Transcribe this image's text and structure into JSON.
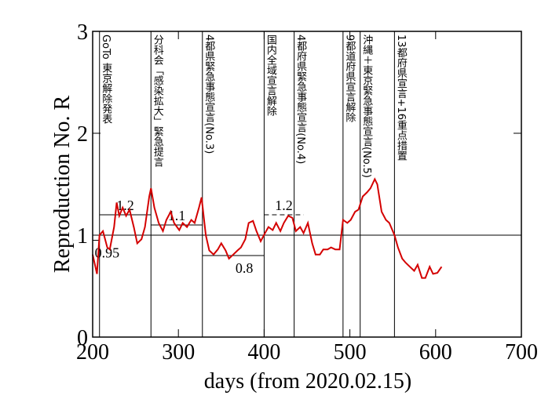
{
  "chart_data": {
    "type": "line",
    "xlabel": "days   (from 2020.02.15)",
    "ylabel": "Reproduction No.  R",
    "xlim": [
      200,
      700
    ],
    "xticks": [
      200,
      300,
      400,
      500,
      600,
      700
    ],
    "ylim": [
      0,
      3
    ],
    "yticks": [
      0,
      1,
      2,
      3
    ],
    "series": [
      {
        "color": "#d40000",
        "x": [
          200,
          205,
          208,
          212,
          217,
          220,
          225,
          228,
          231,
          235,
          239,
          243,
          248,
          252,
          257,
          261,
          266,
          268,
          272,
          277,
          282,
          286,
          291,
          295,
          301,
          305,
          310,
          315,
          319,
          324,
          327,
          332,
          336,
          341,
          346,
          350,
          355,
          359,
          364,
          369,
          373,
          378,
          382,
          387,
          391,
          396,
          401,
          405,
          410,
          414,
          419,
          423,
          428,
          433,
          437,
          442,
          446,
          451,
          456,
          460,
          465,
          469,
          474,
          478,
          483,
          488,
          492,
          497,
          501,
          506,
          510,
          515,
          520,
          524,
          529,
          532,
          537,
          542,
          546,
          552,
          556,
          561,
          565,
          570,
          575,
          579,
          584,
          588,
          593,
          597,
          602,
          607
        ],
        "values": [
          0.81,
          0.62,
          1.0,
          1.04,
          0.88,
          0.86,
          1.08,
          1.32,
          1.19,
          1.27,
          1.19,
          1.25,
          1.08,
          0.92,
          0.96,
          1.08,
          1.38,
          1.46,
          1.27,
          1.12,
          1.04,
          1.15,
          1.23,
          1.12,
          1.05,
          1.12,
          1.08,
          1.15,
          1.12,
          1.27,
          1.37,
          1.0,
          0.85,
          0.81,
          0.86,
          0.92,
          0.85,
          0.77,
          0.81,
          0.85,
          0.88,
          0.96,
          1.12,
          1.14,
          1.04,
          0.94,
          1.02,
          1.08,
          1.05,
          1.12,
          1.04,
          1.12,
          1.19,
          1.17,
          1.04,
          1.08,
          1.02,
          1.12,
          0.92,
          0.81,
          0.81,
          0.86,
          0.86,
          0.88,
          0.86,
          0.86,
          1.15,
          1.12,
          1.15,
          1.23,
          1.25,
          1.38,
          1.42,
          1.46,
          1.55,
          1.5,
          1.23,
          1.15,
          1.12,
          1.0,
          0.88,
          0.77,
          0.73,
          0.69,
          0.65,
          0.71,
          0.58,
          0.58,
          0.69,
          0.62,
          0.63,
          0.69
        ]
      }
    ],
    "reference_lines": [
      {
        "value": 1
      }
    ],
    "segments": [
      {
        "value": 0.95,
        "x": [
          200,
          208
        ]
      },
      {
        "value": 1.2,
        "x": [
          208,
          268
        ]
      },
      {
        "value": 1.1,
        "x": [
          268,
          328
        ]
      },
      {
        "value": 0.8,
        "x": [
          328,
          400
        ]
      },
      {
        "value": 1.2,
        "x": [
          400,
          446
        ],
        "style": "dashed"
      }
    ],
    "events": [
      {
        "day": 208,
        "label": "GoTo 東京解除発表"
      },
      {
        "day": 268,
        "label": "分科会「感染拡大」緊急提言"
      },
      {
        "day": 328,
        "label": "4都県緊急事態宣言(No.3)"
      },
      {
        "day": 400,
        "label": "国内全域宣言解除"
      },
      {
        "day": 435,
        "label": "4都府県緊急事態宣言(No.4)"
      },
      {
        "day": 492,
        "label": "9都道府県宣言解除"
      },
      {
        "day": 512,
        "label": "沖縄＋東京緊急事態宣言(No.5)"
      },
      {
        "day": 552,
        "label": "13都府県宣言+16重点措置"
      }
    ]
  }
}
